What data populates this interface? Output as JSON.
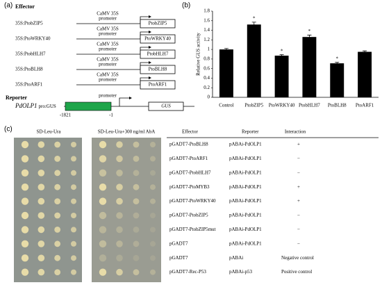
{
  "panel_a": {
    "label": "(a)",
    "effector_title": "Effector",
    "constructs": [
      {
        "name": "35S:PtobZIP5",
        "promoter_lines": [
          "CaMV 35S",
          "promoter"
        ],
        "gene": "PtobZIP5"
      },
      {
        "name": "35S:PtoWRKY40",
        "promoter_lines": [
          "CaMV 35S",
          "promoter"
        ],
        "gene": "PtoWRKY40"
      },
      {
        "name": "35S:PtobHLH7",
        "promoter_lines": [
          "CaMV 35S",
          "promoter"
        ],
        "gene": "PtobHLH7"
      },
      {
        "name": "35S:PtoBLH8",
        "promoter_lines": [
          "CaMV 35S",
          "promoter"
        ],
        "gene": "PtoBLH8"
      },
      {
        "name": "35S:PtoARF1",
        "promoter_lines": [
          "CaMV 35S",
          "promoter"
        ],
        "gene": "PtoARF1"
      }
    ],
    "reporter_title": "Reporter",
    "reporter": {
      "gene_name": "PdOLP1",
      "suffix": "pro:GUS",
      "promoter": "promoter",
      "start": "-1821",
      "end": "-1",
      "gene": "GUS"
    }
  },
  "chart_data": {
    "type": "bar",
    "panel_label": "(b)",
    "y_label": "Relative GUS activity",
    "categories": [
      "Control",
      "PtobZIP5",
      "PtoWRKY40",
      "PtobHLH7",
      "PtoBLH8",
      "PtoARF1"
    ],
    "values": [
      1.0,
      1.52,
      0.87,
      1.26,
      0.71,
      0.95
    ],
    "errors": [
      0.02,
      0.05,
      0.02,
      0.04,
      0.02,
      0.02
    ],
    "value_labels": [
      null,
      "*",
      "*",
      "*",
      "*",
      null
    ],
    "color": "#000000",
    "ylim": [
      0,
      1.8
    ],
    "yticks": [
      0,
      0.2,
      0.4,
      0.6,
      0.8,
      1,
      1.2,
      1.4,
      1.6,
      1.8
    ]
  },
  "panel_c": {
    "label": "(c)",
    "plate_headers": [
      "SD-Leu-Ura",
      "SD-Leu-Ura+300 ng/ml AbA"
    ],
    "table": {
      "headers": [
        "Effector",
        "Reporter",
        "Interaction"
      ],
      "rows": [
        [
          "pGADT7-PtoBLH8",
          "pABAi-PdOLP1",
          "+"
        ],
        [
          "pGADT7-PtoARF1",
          "pABAi-PdOLP1",
          "−"
        ],
        [
          "pGADT7-PtobHLH7",
          "pABAi-PdOLP1",
          "−"
        ],
        [
          "pGADT7-PtoMYB3",
          "pABAi-PdOLP1",
          "+"
        ],
        [
          "pGADT7-PtoWRKY40",
          "pABAi-PdOLP1",
          "+"
        ],
        [
          "pGADT7-PtobZIP5",
          "pABAi-PdOLP1",
          "−"
        ],
        [
          "pGADT7-PtobZIP5mut",
          "pABAi-PdOLP1",
          "−"
        ],
        [
          "pGADT7",
          "pABAi-PdOLP1",
          "−"
        ],
        [
          "pGADT7",
          "pABAi",
          "Negative control"
        ],
        [
          "pGADT7-Rec-P53",
          "pABAi-p53",
          "Positive control"
        ]
      ]
    }
  }
}
